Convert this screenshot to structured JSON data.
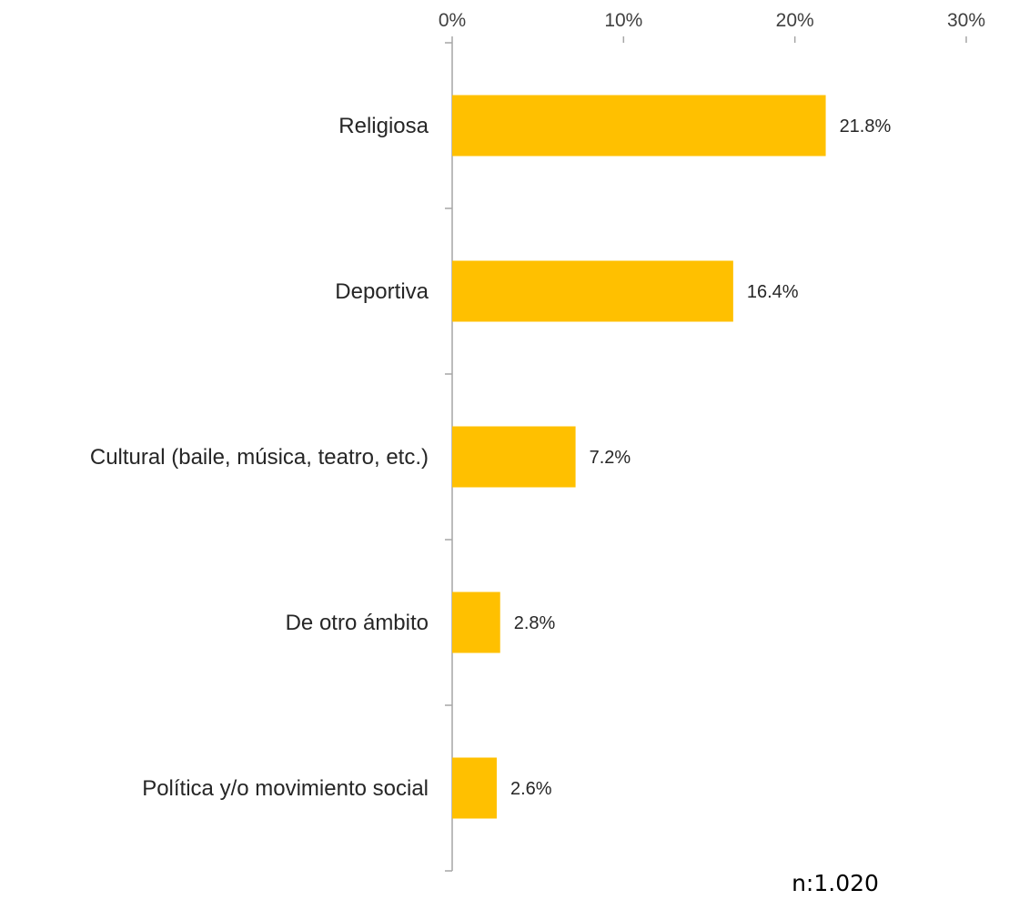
{
  "chart_data": {
    "type": "bar",
    "orientation": "horizontal",
    "categories": [
      "Religiosa",
      "Deportiva",
      "Cultural (baile, música, teatro, etc.)",
      "De otro ámbito",
      "Política y/o movimiento social"
    ],
    "values": [
      21.8,
      16.4,
      7.2,
      2.8,
      2.6
    ],
    "value_labels": [
      "21.8%",
      "16.4%",
      "7.2%",
      "2.8%",
      "2.6%"
    ],
    "xlim": [
      0,
      30
    ],
    "x_ticks": [
      0,
      10,
      20,
      30
    ],
    "x_tick_labels": [
      "0%",
      "10%",
      "20%",
      "30%"
    ],
    "x_axis_position": "top",
    "grid": false,
    "legend": "none",
    "bar_color": "#FFC000"
  },
  "note": "n:1.020"
}
